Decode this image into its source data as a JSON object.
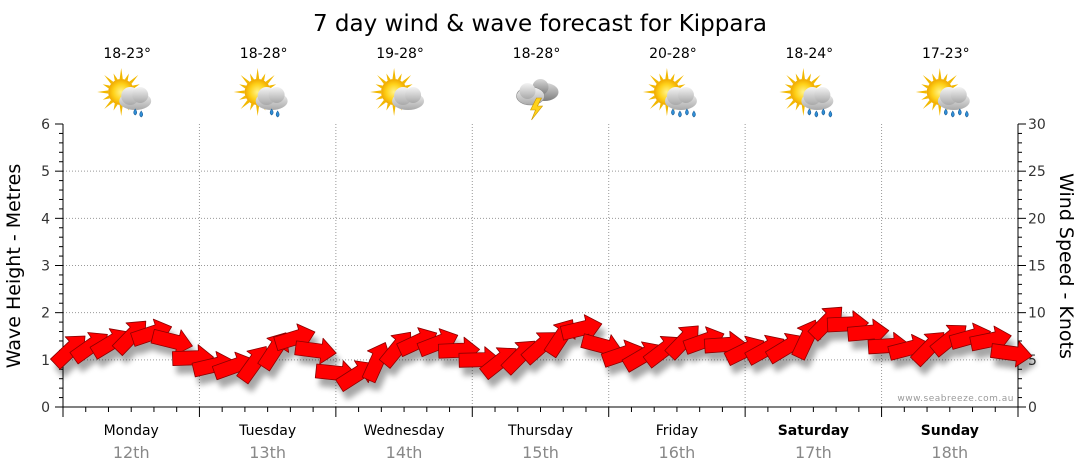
{
  "title": "7 day wind & wave forecast for Kippara",
  "watermark": "www.seabreeze.com.au",
  "colors": {
    "arrow_fill": "#ff0000",
    "arrow_stroke": "#8a0000",
    "grid": "#999999",
    "date_text": "#888888"
  },
  "days": [
    {
      "name": "Monday",
      "date": "12th",
      "temp": "18-23°",
      "icon": "sun-cloud-showers-icon",
      "bold": false
    },
    {
      "name": "Tuesday",
      "date": "13th",
      "temp": "18-28°",
      "icon": "sun-cloud-showers-icon",
      "bold": false
    },
    {
      "name": "Wednesday",
      "date": "14th",
      "temp": "19-28°",
      "icon": "sun-cloud-icon",
      "bold": false
    },
    {
      "name": "Thursday",
      "date": "15th",
      "temp": "18-28°",
      "icon": "storm-cloud-icon",
      "bold": false
    },
    {
      "name": "Friday",
      "date": "16th",
      "temp": "20-28°",
      "icon": "sun-cloud-rain-icon",
      "bold": false
    },
    {
      "name": "Saturday",
      "date": "17th",
      "temp": "18-24°",
      "icon": "sun-cloud-rain-icon",
      "bold": true
    },
    {
      "name": "Sunday",
      "date": "18th",
      "temp": "17-23°",
      "icon": "sun-cloud-rain-icon",
      "bold": true
    }
  ],
  "chart_data": {
    "type": "line",
    "title": "7 day wind & wave forecast for Kippara",
    "ylabel_left": "Wave Height - Metres",
    "ylabel_right": "Wind Speed - Knots",
    "y_left_lim": [
      0,
      6
    ],
    "y_left_ticks": [
      0,
      1,
      2,
      3,
      4,
      5,
      6
    ],
    "y_right_lim": [
      0,
      30
    ],
    "y_right_ticks": [
      0,
      5,
      10,
      15,
      20,
      25,
      30
    ],
    "x_range_days": [
      0,
      7
    ],
    "grid": true,
    "series": [
      {
        "name": "Wind speed (knots) with direction arrows",
        "axis": "right",
        "points": [
          {
            "d": 0.05,
            "knots": 6.0
          },
          {
            "d": 0.2,
            "knots": 6.4
          },
          {
            "d": 0.35,
            "knots": 6.8
          },
          {
            "d": 0.5,
            "knots": 7.5
          },
          {
            "d": 0.65,
            "knots": 7.8
          },
          {
            "d": 0.8,
            "knots": 7.0
          },
          {
            "d": 0.95,
            "knots": 5.2
          },
          {
            "d": 1.1,
            "knots": 4.4
          },
          {
            "d": 1.25,
            "knots": 4.3
          },
          {
            "d": 1.4,
            "knots": 4.6
          },
          {
            "d": 1.55,
            "knots": 6.0
          },
          {
            "d": 1.7,
            "knots": 7.3
          },
          {
            "d": 1.85,
            "knots": 6.0
          },
          {
            "d": 2.0,
            "knots": 3.6
          },
          {
            "d": 2.15,
            "knots": 3.4
          },
          {
            "d": 2.3,
            "knots": 4.8
          },
          {
            "d": 2.45,
            "knots": 6.2
          },
          {
            "d": 2.6,
            "knots": 6.9
          },
          {
            "d": 2.75,
            "knots": 6.8
          },
          {
            "d": 2.9,
            "knots": 6.0
          },
          {
            "d": 3.05,
            "knots": 5.0
          },
          {
            "d": 3.2,
            "knots": 4.8
          },
          {
            "d": 3.35,
            "knots": 5.4
          },
          {
            "d": 3.5,
            "knots": 6.4
          },
          {
            "d": 3.65,
            "knots": 7.4
          },
          {
            "d": 3.8,
            "knots": 8.3
          },
          {
            "d": 3.95,
            "knots": 6.5
          },
          {
            "d": 4.1,
            "knots": 5.6
          },
          {
            "d": 4.25,
            "knots": 5.4
          },
          {
            "d": 4.4,
            "knots": 6.0
          },
          {
            "d": 4.55,
            "knots": 7.0
          },
          {
            "d": 4.7,
            "knots": 7.0
          },
          {
            "d": 4.85,
            "knots": 6.6
          },
          {
            "d": 5.0,
            "knots": 6.0
          },
          {
            "d": 5.15,
            "knots": 6.1
          },
          {
            "d": 5.3,
            "knots": 6.3
          },
          {
            "d": 5.45,
            "knots": 7.2
          },
          {
            "d": 5.6,
            "knots": 9.0
          },
          {
            "d": 5.75,
            "knots": 8.8
          },
          {
            "d": 5.9,
            "knots": 7.9
          },
          {
            "d": 6.05,
            "knots": 6.5
          },
          {
            "d": 6.2,
            "knots": 6.2
          },
          {
            "d": 6.35,
            "knots": 6.3
          },
          {
            "d": 6.5,
            "knots": 7.2
          },
          {
            "d": 6.65,
            "knots": 7.4
          },
          {
            "d": 6.8,
            "knots": 7.1
          },
          {
            "d": 6.95,
            "knots": 5.7
          }
        ]
      }
    ]
  }
}
